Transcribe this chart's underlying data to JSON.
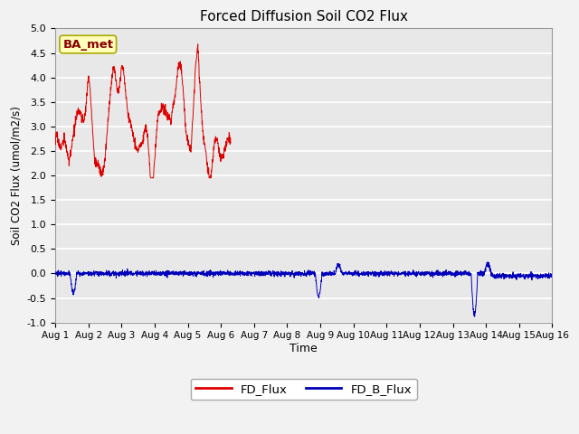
{
  "title": "Forced Diffusion Soil CO2 Flux",
  "ylabel": "Soil CO2 Flux (umol/m2/s)",
  "xlabel": "Time",
  "ylim": [
    -1.0,
    5.0
  ],
  "xlim": [
    0,
    15
  ],
  "yticks": [
    -1.0,
    -0.5,
    0.0,
    0.5,
    1.0,
    1.5,
    2.0,
    2.5,
    3.0,
    3.5,
    4.0,
    4.5,
    5.0
  ],
  "xtick_labels": [
    "Aug 1",
    "Aug 2",
    "Aug 3",
    "Aug 4",
    "Aug 5",
    "Aug 6",
    "Aug 7",
    "Aug 8",
    "Aug 9",
    "Aug 10",
    "Aug 11",
    "Aug 12",
    "Aug 13",
    "Aug 14",
    "Aug 15",
    "Aug 16"
  ],
  "fig_facecolor": "#f2f2f2",
  "plot_bg_color": "#e8e8e8",
  "fd_flux_color": "#dd0000",
  "fd_b_flux_color": "#0000bb",
  "label_box_text": "BA_met",
  "label_box_facecolor": "#ffffbb",
  "label_box_edgecolor": "#aaaa00",
  "legend_labels": [
    "FD_Flux",
    "FD_B_Flux"
  ],
  "grid_color": "#ffffff",
  "title_fontsize": 11
}
